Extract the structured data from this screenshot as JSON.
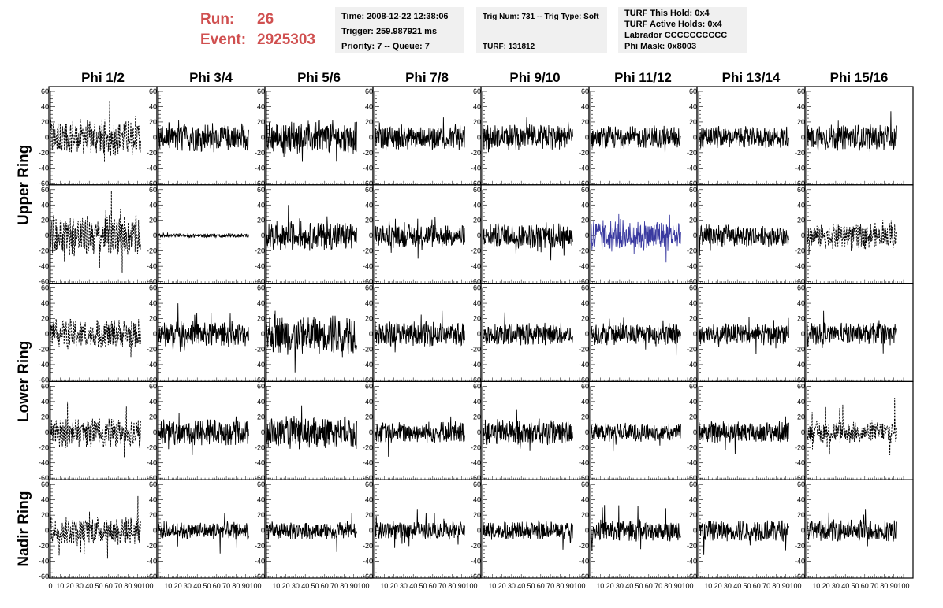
{
  "run": {
    "run_label": "Run:",
    "run_value": "26",
    "event_label": "Event:",
    "event_value": "2925303"
  },
  "time_box": [
    "Time: 2008-12-22 12:38:06",
    "Trigger: 259.987921 ms",
    "Priority: 7 -- Queue: 7"
  ],
  "trig_box": [
    "Trig Num: 731 -- Trig Type: Soft",
    "",
    "TURF: 131812"
  ],
  "turf_box": [
    "TURF This Hold: 0x4",
    "TURF Active Holds: 0x4",
    "Labrador CCCCCCCCCC",
    "Phi Mask: 0x8003"
  ],
  "colors": {
    "run_text": "#d05050",
    "trace": "#000000",
    "highlight_trace": "#3a3aa0",
    "box_bg": "#f0f0f0"
  },
  "chart_data": {
    "type": "line",
    "columns": [
      "Phi 1/2",
      "Phi 3/4",
      "Phi 5/6",
      "Phi 7/8",
      "Phi 9/10",
      "Phi 11/12",
      "Phi 13/14",
      "Phi 15/16"
    ],
    "ring_labels": [
      "Upper Ring",
      "Lower Ring",
      "Nadir Ring"
    ],
    "rows": 5,
    "xlim": [
      0,
      100
    ],
    "ylim": [
      -60,
      60
    ],
    "x_ticks": [
      0,
      10,
      20,
      30,
      40,
      50,
      60,
      70,
      80,
      90,
      100
    ],
    "y_ticks": [
      -60,
      -40,
      -20,
      0,
      20,
      40,
      60
    ],
    "x_tick_labels_row": "0102030405060708090100",
    "x_tick_labels_col": "102030405060708090100",
    "panels": [
      [
        {
          "amp": 20,
          "spike": 48,
          "style": "dashed"
        },
        {
          "amp": 16,
          "spike": 22,
          "style": "solid"
        },
        {
          "amp": 18,
          "spike": 58,
          "style": "solid"
        },
        {
          "amp": 14,
          "spike": 26,
          "style": "solid"
        },
        {
          "amp": 14,
          "spike": 26,
          "style": "solid"
        },
        {
          "amp": 12,
          "spike": 22,
          "style": "solid"
        },
        {
          "amp": 12,
          "spike": 28,
          "style": "solid"
        },
        {
          "amp": 14,
          "spike": 34,
          "style": "solid"
        }
      ],
      [
        {
          "amp": 22,
          "spike": 58,
          "style": "dashed"
        },
        {
          "amp": 2,
          "spike": 4,
          "style": "solid"
        },
        {
          "amp": 16,
          "spike": 40,
          "style": "solid"
        },
        {
          "amp": 12,
          "spike": 30,
          "style": "solid"
        },
        {
          "amp": 14,
          "spike": 32,
          "style": "solid"
        },
        {
          "amp": 18,
          "spike": 35,
          "style": "highlight"
        },
        {
          "amp": 12,
          "spike": 26,
          "style": "solid"
        },
        {
          "amp": 14,
          "spike": 25,
          "style": "dashed"
        }
      ],
      [
        {
          "amp": 16,
          "spike": 30,
          "style": "dashed"
        },
        {
          "amp": 14,
          "spike": 40,
          "style": "solid"
        },
        {
          "amp": 22,
          "spike": 50,
          "style": "solid"
        },
        {
          "amp": 14,
          "spike": 30,
          "style": "solid"
        },
        {
          "amp": 12,
          "spike": 28,
          "style": "solid"
        },
        {
          "amp": 12,
          "spike": 28,
          "style": "solid"
        },
        {
          "amp": 12,
          "spike": 26,
          "style": "solid"
        },
        {
          "amp": 12,
          "spike": 30,
          "style": "solid"
        }
      ],
      [
        {
          "amp": 16,
          "spike": 40,
          "style": "dashed"
        },
        {
          "amp": 14,
          "spike": 30,
          "style": "solid"
        },
        {
          "amp": 18,
          "spike": 35,
          "style": "solid"
        },
        {
          "amp": 12,
          "spike": 32,
          "style": "solid"
        },
        {
          "amp": 14,
          "spike": 30,
          "style": "solid"
        },
        {
          "amp": 10,
          "spike": 25,
          "style": "solid"
        },
        {
          "amp": 12,
          "spike": 28,
          "style": "solid"
        },
        {
          "amp": 12,
          "spike": 45,
          "style": "dashed"
        }
      ],
      [
        {
          "amp": 16,
          "spike": 45,
          "style": "dashed"
        },
        {
          "amp": 10,
          "spike": 30,
          "style": "solid"
        },
        {
          "amp": 10,
          "spike": 28,
          "style": "solid"
        },
        {
          "amp": 10,
          "spike": 28,
          "style": "solid"
        },
        {
          "amp": 10,
          "spike": 25,
          "style": "solid"
        },
        {
          "amp": 12,
          "spike": 48,
          "style": "solid"
        },
        {
          "amp": 12,
          "spike": 32,
          "style": "solid"
        },
        {
          "amp": 12,
          "spike": 28,
          "style": "solid"
        }
      ]
    ]
  }
}
